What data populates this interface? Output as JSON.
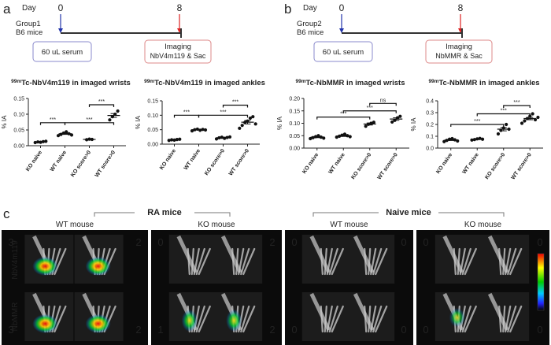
{
  "panel_a": {
    "label": "a",
    "day": "Day",
    "day_start": 0,
    "day_end": 8,
    "group": "Group1",
    "mice": "B6 mice",
    "injection": "60 uL serum",
    "imaging": "Imaging",
    "imaging_detail": "NbV4m119 & Sac"
  },
  "panel_b": {
    "label": "b",
    "day": "Day",
    "day_start": 0,
    "day_end": 8,
    "group": "Group2",
    "mice": "B6 mice",
    "injection": "60 uL serum",
    "imaging": "Imaging",
    "imaging_detail": "NbMMR & Sac"
  },
  "chart_data": [
    {
      "type": "dot",
      "title_sup": "99m",
      "title": "Tc-NbV4m119 in imaged wrists",
      "ylabel": "% IA",
      "categories": [
        "KO naive",
        "WT naive",
        "KO score>0",
        "WT score>0"
      ],
      "values": [
        [
          0.01,
          0.012,
          0.011,
          0.013,
          0.014
        ],
        [
          0.032,
          0.036,
          0.04,
          0.044,
          0.038,
          0.034
        ],
        [
          0.019,
          0.021,
          0.02
        ],
        [
          0.082,
          0.092,
          0.1,
          0.11
        ]
      ],
      "means": [
        0.012,
        0.038,
        0.02,
        0.096
      ],
      "errors": [
        0.001,
        0.002,
        0.001,
        0.006
      ],
      "ylim": [
        0,
        0.15
      ],
      "yticks": [
        {
          "value": 0,
          "label": "0.00"
        },
        {
          "value": 0.05,
          "label": "0.05"
        },
        {
          "value": 0.1,
          "label": "0.10"
        },
        {
          "value": 0.15,
          "label": "0.15"
        }
      ],
      "brackets": [
        {
          "label": "***",
          "from": 0,
          "to": 1,
          "y": 0.073
        },
        {
          "label": "***",
          "from": 1,
          "to": 3,
          "y": 0.073
        },
        {
          "label": "***",
          "from": 2,
          "to": 3,
          "y": 0.13
        }
      ]
    },
    {
      "type": "dot",
      "title_sup": "99m",
      "title": "Tc-NbV4m119 in imaged ankles",
      "ylabel": "% IA",
      "categories": [
        "KO naive",
        "WT naive",
        "KO score>0",
        "WT score>0"
      ],
      "values": [
        [
          0.013,
          0.015,
          0.014,
          0.016,
          0.017
        ],
        [
          0.046,
          0.05,
          0.052,
          0.048,
          0.051,
          0.049
        ],
        [
          0.018,
          0.022,
          0.024,
          0.02,
          0.023,
          0.025
        ],
        [
          0.055,
          0.065,
          0.075,
          0.08,
          0.09,
          0.095,
          0.07
        ]
      ],
      "means": [
        0.015,
        0.05,
        0.022,
        0.076
      ],
      "errors": [
        0.001,
        0.001,
        0.002,
        0.006
      ],
      "ylim": [
        0,
        0.15
      ],
      "yticks": [
        {
          "value": 0,
          "label": "0.00"
        },
        {
          "value": 0.05,
          "label": "0.05"
        },
        {
          "value": 0.1,
          "label": "0.10"
        },
        {
          "value": 0.15,
          "label": "0.15"
        }
      ],
      "brackets": [
        {
          "label": "***",
          "from": 0,
          "to": 1,
          "y": 0.1
        },
        {
          "label": "***",
          "from": 1,
          "to": 3,
          "y": 0.1
        },
        {
          "label": "***",
          "from": 2,
          "to": 3,
          "y": 0.135
        }
      ]
    },
    {
      "type": "dot",
      "title_sup": "99m",
      "title": "Tc-NbMMR in imaged wrists",
      "ylabel": "% IA",
      "categories": [
        "KO naive",
        "WT naive",
        "KO score>0",
        "WT score>0"
      ],
      "values": [
        [
          0.038,
          0.042,
          0.046,
          0.05,
          0.044,
          0.04
        ],
        [
          0.044,
          0.048,
          0.052,
          0.056,
          0.05,
          0.046
        ],
        [
          0.088,
          0.096,
          0.1,
          0.104
        ],
        [
          0.105,
          0.112,
          0.122,
          0.128
        ]
      ],
      "means": [
        0.044,
        0.049,
        0.097,
        0.117
      ],
      "errors": [
        0.002,
        0.002,
        0.004,
        0.005
      ],
      "ylim": [
        0,
        0.2
      ],
      "yticks": [
        {
          "value": 0,
          "label": "0.00"
        },
        {
          "value": 0.05,
          "label": "0.05"
        },
        {
          "value": 0.1,
          "label": "0.10"
        },
        {
          "value": 0.15,
          "label": "0.15"
        },
        {
          "value": 0.2,
          "label": "0.20"
        }
      ],
      "brackets": [
        {
          "label": "***",
          "from": 0,
          "to": 2,
          "y": 0.125
        },
        {
          "label": "***",
          "from": 1,
          "to": 3,
          "y": 0.15
        },
        {
          "label": "ns",
          "from": 2,
          "to": 3,
          "y": 0.18
        }
      ]
    },
    {
      "type": "dot",
      "title_sup": "99m",
      "title": "Tc-NbMMR in imaged ankles",
      "ylabel": "% IA",
      "categories": [
        "KO naive",
        "WT naive",
        "KO score>0",
        "WT score>0"
      ],
      "values": [
        [
          0.055,
          0.065,
          0.075,
          0.08,
          0.07,
          0.06
        ],
        [
          0.068,
          0.072,
          0.078,
          0.082,
          0.075
        ],
        [
          0.12,
          0.15,
          0.17,
          0.2,
          0.16
        ],
        [
          0.21,
          0.23,
          0.25,
          0.27,
          0.29,
          0.24,
          0.26
        ]
      ],
      "means": [
        0.068,
        0.075,
        0.16,
        0.25
      ],
      "errors": [
        0.004,
        0.003,
        0.014,
        0.01
      ],
      "ylim": [
        0,
        0.4
      ],
      "yticks": [
        {
          "value": 0,
          "label": "0.0"
        },
        {
          "value": 0.1,
          "label": "0.1"
        },
        {
          "value": 0.2,
          "label": "0.2"
        },
        {
          "value": 0.3,
          "label": "0.3"
        },
        {
          "value": 0.4,
          "label": "0.4"
        }
      ],
      "brackets": [
        {
          "label": "***",
          "from": 0,
          "to": 2,
          "y": 0.2
        },
        {
          "label": "***",
          "from": 1,
          "to": 3,
          "y": 0.29
        },
        {
          "label": "***",
          "from": 2,
          "to": 3,
          "y": 0.36
        }
      ]
    }
  ],
  "panel_c": {
    "label": "c",
    "groups": [
      "RA mice",
      "Naive mice"
    ],
    "columns": [
      "WT mouse",
      "KO mouse",
      "WT mouse",
      "KO mouse"
    ],
    "rows": [
      "NbV4m119",
      "NbMMR"
    ],
    "scores": [
      [
        3,
        2,
        0,
        2,
        0,
        0,
        0,
        0
      ],
      [
        3,
        2,
        1,
        2,
        0,
        0,
        0,
        0
      ]
    ]
  }
}
